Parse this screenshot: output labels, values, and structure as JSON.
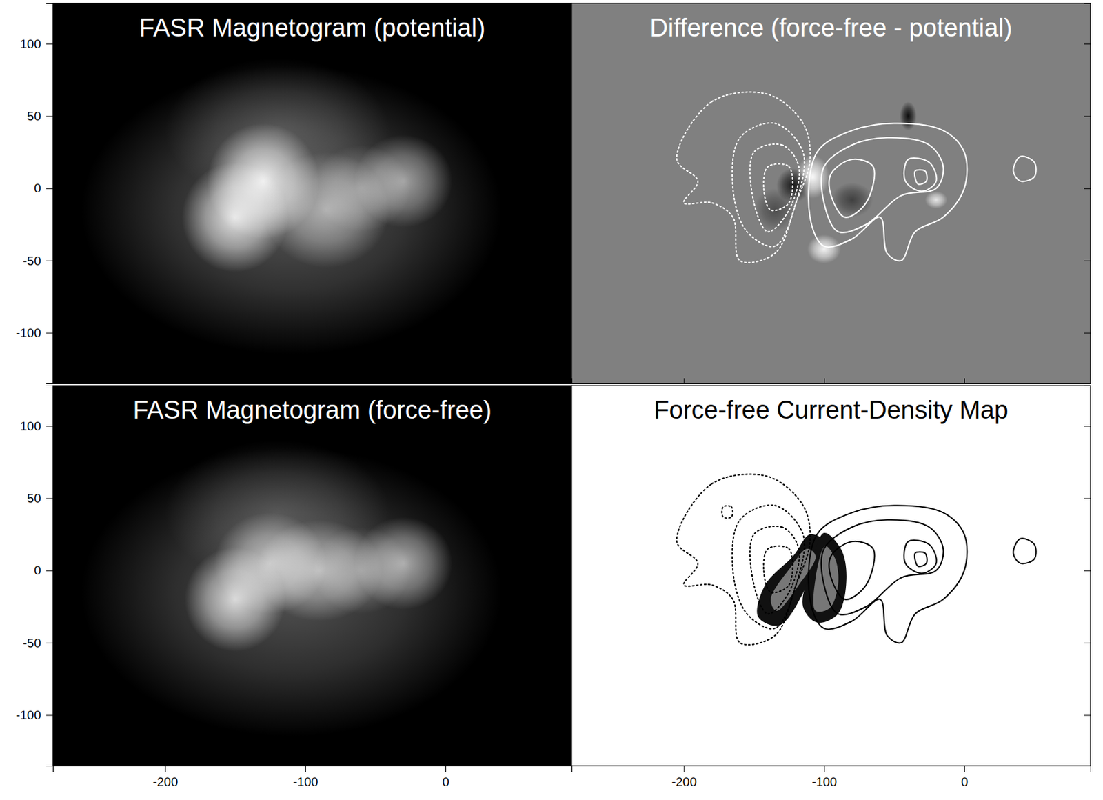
{
  "chart_data": [
    {
      "type": "image",
      "title": "FASR Magnetogram (potential)",
      "color": "#000000",
      "xlim": [
        -280,
        90
      ],
      "ylim": [
        -135,
        128
      ],
      "xticks": [
        -200,
        -100,
        0
      ],
      "yticks": [
        -100,
        -50,
        0,
        50,
        100
      ],
      "tick_labels": "y",
      "sources": [
        {
          "x": -110,
          "y": -15,
          "rx": 150,
          "ry": 100,
          "intensity": 0.35
        },
        {
          "x": -120,
          "y": 40,
          "rx": 80,
          "ry": 50,
          "intensity": 0.2
        },
        {
          "x": -130,
          "y": 5,
          "rx": 40,
          "ry": 40,
          "intensity": 0.9
        },
        {
          "x": -150,
          "y": -20,
          "rx": 38,
          "ry": 38,
          "intensity": 0.85
        },
        {
          "x": -85,
          "y": -15,
          "rx": 45,
          "ry": 40,
          "intensity": 0.55
        },
        {
          "x": -60,
          "y": 0,
          "rx": 35,
          "ry": 30,
          "intensity": 0.35
        },
        {
          "x": -30,
          "y": 5,
          "rx": 35,
          "ry": 32,
          "intensity": 0.55
        }
      ]
    },
    {
      "type": "contour",
      "title": "Difference (force-free - potential)",
      "color": "#808080",
      "xlim": [
        -280,
        90
      ],
      "ylim": [
        -135,
        128
      ],
      "xticks": [
        -200,
        -100,
        0
      ],
      "yticks": [
        -100,
        -50,
        0,
        50,
        100
      ],
      "tick_labels": false,
      "sources": [
        {
          "x": -108,
          "y": 8,
          "rx": 12,
          "ry": 15,
          "intensity": 0.95
        },
        {
          "x": -100,
          "y": -42,
          "rx": 12,
          "ry": 10,
          "intensity": 0.9
        },
        {
          "x": -122,
          "y": 2,
          "rx": 12,
          "ry": 12,
          "intensity": -0.8
        },
        {
          "x": -135,
          "y": -15,
          "rx": 15,
          "ry": 15,
          "intensity": -0.4
        },
        {
          "x": -80,
          "y": -8,
          "rx": 15,
          "ry": 12,
          "intensity": -0.5
        },
        {
          "x": -40,
          "y": 50,
          "rx": 6,
          "ry": 10,
          "intensity": -0.9
        },
        {
          "x": -20,
          "y": -8,
          "rx": 8,
          "ry": 6,
          "intensity": 0.8
        }
      ],
      "contours": [
        {
          "line_style": "solid",
          "color": "#ffffff",
          "points": [
            [
              -105,
              25
            ],
            [
              -80,
              40
            ],
            [
              -50,
              45
            ],
            [
              -15,
              40
            ],
            [
              0,
              25
            ],
            [
              0,
              0
            ],
            [
              -15,
              -20
            ],
            [
              -35,
              -30
            ],
            [
              -45,
              -50
            ],
            [
              -55,
              -45
            ],
            [
              -60,
              -20
            ],
            [
              -80,
              -35
            ],
            [
              -100,
              -40
            ],
            [
              -110,
              -20
            ]
          ]
        },
        {
          "line_style": "solid",
          "color": "#ffffff",
          "points": [
            [
              -100,
              15
            ],
            [
              -80,
              30
            ],
            [
              -55,
              35
            ],
            [
              -25,
              30
            ],
            [
              -15,
              15
            ],
            [
              -20,
              0
            ],
            [
              -45,
              -5
            ],
            [
              -70,
              -25
            ],
            [
              -90,
              -30
            ],
            [
              -100,
              -10
            ]
          ]
        },
        {
          "line_style": "solid",
          "color": "#ffffff",
          "points": [
            [
              -95,
              10
            ],
            [
              -80,
              20
            ],
            [
              -65,
              15
            ],
            [
              -70,
              -10
            ],
            [
              -85,
              -20
            ],
            [
              -95,
              -5
            ]
          ]
        },
        {
          "line_style": "solid",
          "color": "#ffffff",
          "points": [
            [
              -40,
              20
            ],
            [
              -25,
              18
            ],
            [
              -20,
              5
            ],
            [
              -30,
              -2
            ],
            [
              -42,
              5
            ]
          ]
        },
        {
          "line_style": "solid",
          "color": "#ffffff",
          "points": [
            [
              -35,
              12
            ],
            [
              -28,
              12
            ],
            [
              -27,
              5
            ],
            [
              -33,
              3
            ]
          ]
        },
        {
          "line_style": "solid",
          "color": "#ffffff",
          "points": [
            [
              40,
              22
            ],
            [
              50,
              18
            ],
            [
              50,
              8
            ],
            [
              40,
              5
            ],
            [
              35,
              12
            ]
          ]
        },
        {
          "line_style": "dotted",
          "color": "#ffffff",
          "points": [
            [
              -205,
              20
            ],
            [
              -180,
              60
            ],
            [
              -140,
              65
            ],
            [
              -115,
              45
            ],
            [
              -110,
              20
            ],
            [
              -120,
              -10
            ],
            [
              -135,
              -45
            ],
            [
              -160,
              -50
            ],
            [
              -165,
              -20
            ],
            [
              -180,
              -10
            ],
            [
              -200,
              -10
            ],
            [
              -190,
              5
            ]
          ]
        },
        {
          "line_style": "dotted",
          "color": "#ffffff",
          "points": [
            [
              -160,
              35
            ],
            [
              -135,
              45
            ],
            [
              -115,
              25
            ],
            [
              -120,
              -10
            ],
            [
              -135,
              -40
            ],
            [
              -155,
              -30
            ],
            [
              -165,
              0
            ]
          ]
        },
        {
          "line_style": "dotted",
          "color": "#ffffff",
          "points": [
            [
              -150,
              25
            ],
            [
              -130,
              30
            ],
            [
              -118,
              15
            ],
            [
              -125,
              -15
            ],
            [
              -140,
              -30
            ],
            [
              -150,
              -10
            ]
          ]
        },
        {
          "line_style": "dotted",
          "color": "#ffffff",
          "points": [
            [
              -140,
              15
            ],
            [
              -125,
              15
            ],
            [
              -125,
              -10
            ],
            [
              -138,
              -15
            ],
            [
              -143,
              0
            ]
          ]
        }
      ]
    },
    {
      "type": "image",
      "title": "FASR Magnetogram (force-free)",
      "color": "#000000",
      "xlim": [
        -280,
        90
      ],
      "ylim": [
        -135,
        128
      ],
      "xticks": [
        -200,
        -100,
        0
      ],
      "yticks": [
        -100,
        -50,
        0,
        50,
        100
      ],
      "tick_labels": true,
      "sources": [
        {
          "x": -110,
          "y": -15,
          "rx": 150,
          "ry": 100,
          "intensity": 0.33
        },
        {
          "x": -120,
          "y": 40,
          "rx": 80,
          "ry": 50,
          "intensity": 0.2
        },
        {
          "x": -125,
          "y": 5,
          "rx": 40,
          "ry": 35,
          "intensity": 0.65
        },
        {
          "x": -150,
          "y": -20,
          "rx": 36,
          "ry": 36,
          "intensity": 0.8
        },
        {
          "x": -90,
          "y": 0,
          "rx": 45,
          "ry": 35,
          "intensity": 0.6
        },
        {
          "x": -60,
          "y": 0,
          "rx": 35,
          "ry": 30,
          "intensity": 0.35
        },
        {
          "x": -30,
          "y": 5,
          "rx": 35,
          "ry": 32,
          "intensity": 0.6
        }
      ]
    },
    {
      "type": "contour",
      "title": "Force-free Current-Density Map",
      "color": "#ffffff",
      "xlim": [
        -280,
        90
      ],
      "ylim": [
        -135,
        128
      ],
      "xticks": [
        -200,
        -100,
        0
      ],
      "yticks": [
        -100,
        -50,
        0,
        50,
        100
      ],
      "tick_labels": "x",
      "regions": [
        {
          "color": "#111111",
          "points": [
            [
              -110,
              25
            ],
            [
              -100,
              20
            ],
            [
              -112,
              -10
            ],
            [
              -132,
              -38
            ],
            [
              -147,
              -32
            ],
            [
              -142,
              -10
            ],
            [
              -122,
              10
            ]
          ]
        },
        {
          "color": "#111111",
          "points": [
            [
              -100,
              26
            ],
            [
              -88,
              15
            ],
            [
              -84,
              -5
            ],
            [
              -90,
              -30
            ],
            [
              -105,
              -36
            ],
            [
              -115,
              -25
            ],
            [
              -110,
              0
            ]
          ]
        },
        {
          "color": "#777777",
          "points": [
            [
              -112,
              15
            ],
            [
              -106,
              10
            ],
            [
              -118,
              -10
            ],
            [
              -134,
              -28
            ],
            [
              -138,
              -20
            ],
            [
              -124,
              2
            ]
          ]
        },
        {
          "color": "#777777",
          "points": [
            [
              -99,
              17
            ],
            [
              -92,
              8
            ],
            [
              -90,
              -10
            ],
            [
              -96,
              -26
            ],
            [
              -106,
              -28
            ],
            [
              -106,
              -5
            ]
          ]
        }
      ],
      "contours": [
        {
          "line_style": "solid",
          "color": "#000000",
          "points": [
            [
              -105,
              25
            ],
            [
              -80,
              40
            ],
            [
              -50,
              45
            ],
            [
              -15,
              40
            ],
            [
              0,
              25
            ],
            [
              0,
              0
            ],
            [
              -15,
              -20
            ],
            [
              -35,
              -30
            ],
            [
              -45,
              -50
            ],
            [
              -55,
              -45
            ],
            [
              -60,
              -20
            ],
            [
              -80,
              -35
            ],
            [
              -100,
              -40
            ],
            [
              -110,
              -20
            ]
          ]
        },
        {
          "line_style": "solid",
          "color": "#000000",
          "points": [
            [
              -100,
              15
            ],
            [
              -80,
              30
            ],
            [
              -55,
              35
            ],
            [
              -25,
              30
            ],
            [
              -15,
              15
            ],
            [
              -20,
              0
            ],
            [
              -45,
              -5
            ],
            [
              -70,
              -25
            ],
            [
              -90,
              -30
            ],
            [
              -100,
              -10
            ]
          ]
        },
        {
          "line_style": "solid",
          "color": "#000000",
          "points": [
            [
              -95,
              10
            ],
            [
              -80,
              20
            ],
            [
              -65,
              15
            ],
            [
              -70,
              -10
            ],
            [
              -85,
              -20
            ],
            [
              -95,
              -5
            ]
          ]
        },
        {
          "line_style": "solid",
          "color": "#000000",
          "points": [
            [
              -40,
              20
            ],
            [
              -25,
              18
            ],
            [
              -20,
              5
            ],
            [
              -30,
              -2
            ],
            [
              -42,
              5
            ]
          ]
        },
        {
          "line_style": "solid",
          "color": "#000000",
          "points": [
            [
              -35,
              12
            ],
            [
              -28,
              12
            ],
            [
              -27,
              5
            ],
            [
              -33,
              3
            ]
          ]
        },
        {
          "line_style": "solid",
          "color": "#000000",
          "points": [
            [
              40,
              22
            ],
            [
              50,
              18
            ],
            [
              50,
              8
            ],
            [
              40,
              5
            ],
            [
              35,
              12
            ]
          ]
        },
        {
          "line_style": "dotted",
          "color": "#000000",
          "points": [
            [
              -205,
              20
            ],
            [
              -180,
              60
            ],
            [
              -140,
              65
            ],
            [
              -115,
              45
            ],
            [
              -110,
              20
            ],
            [
              -120,
              -10
            ],
            [
              -135,
              -45
            ],
            [
              -160,
              -50
            ],
            [
              -165,
              -20
            ],
            [
              -180,
              -10
            ],
            [
              -200,
              -10
            ],
            [
              -190,
              5
            ]
          ]
        },
        {
          "line_style": "dotted",
          "color": "#000000",
          "points": [
            [
              -160,
              35
            ],
            [
              -135,
              45
            ],
            [
              -115,
              25
            ],
            [
              -120,
              -10
            ],
            [
              -135,
              -40
            ],
            [
              -155,
              -30
            ],
            [
              -165,
              0
            ]
          ]
        },
        {
          "line_style": "dotted",
          "color": "#000000",
          "points": [
            [
              -150,
              25
            ],
            [
              -130,
              30
            ],
            [
              -118,
              15
            ],
            [
              -125,
              -15
            ],
            [
              -140,
              -30
            ],
            [
              -150,
              -10
            ]
          ]
        },
        {
          "line_style": "dotted",
          "color": "#000000",
          "points": [
            [
              -140,
              15
            ],
            [
              -125,
              15
            ],
            [
              -125,
              -10
            ],
            [
              -138,
              -15
            ],
            [
              -143,
              0
            ]
          ]
        },
        {
          "line_style": "dotted",
          "color": "#000000",
          "points": [
            [
              -172,
              44
            ],
            [
              -166,
              44
            ],
            [
              -166,
              37
            ],
            [
              -172,
              37
            ]
          ]
        }
      ]
    }
  ]
}
